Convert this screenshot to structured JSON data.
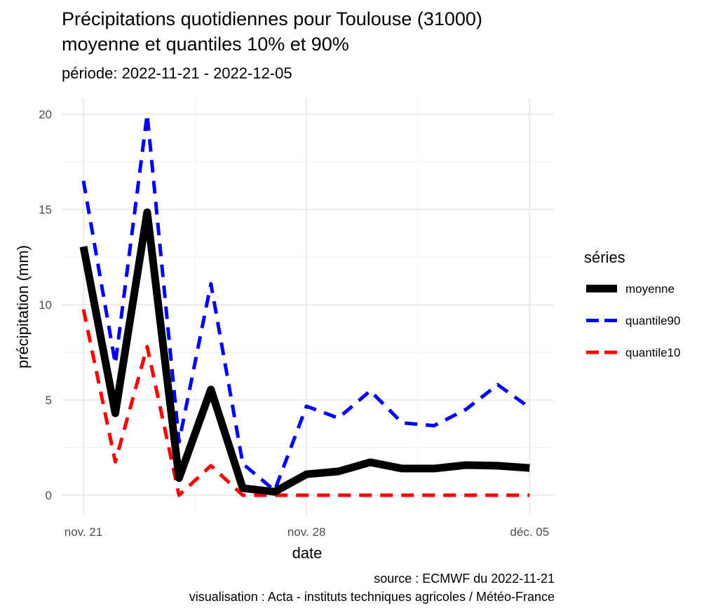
{
  "chart_data": {
    "type": "line",
    "title": "Précipitations quotidiennes pour Toulouse (31000)",
    "title_line2": "moyenne et quantiles 10% et 90%",
    "subtitle": "période: 2022-11-21 - 2022-12-05",
    "xlabel": "date",
    "ylabel": "précipitation (mm)",
    "x": [
      "2022-11-21",
      "2022-11-22",
      "2022-11-23",
      "2022-11-24",
      "2022-11-25",
      "2022-11-26",
      "2022-11-27",
      "2022-11-28",
      "2022-11-29",
      "2022-11-30",
      "2022-12-01",
      "2022-12-02",
      "2022-12-03",
      "2022-12-04",
      "2022-12-05"
    ],
    "x_ticks": [
      {
        "index": 0,
        "label": "nov. 21"
      },
      {
        "index": 7,
        "label": "nov. 28"
      },
      {
        "index": 14,
        "label": "déc. 05"
      }
    ],
    "y_ticks": [
      0,
      5,
      10,
      15,
      20
    ],
    "ylim": [
      -1,
      21
    ],
    "grid": true,
    "legend": {
      "title": "séries",
      "placement": "right"
    },
    "series": [
      {
        "name": "moyenne",
        "color": "#000000",
        "dash": "solid",
        "values": [
          13.05,
          4.3,
          14.85,
          0.9,
          5.55,
          0.37,
          0.18,
          1.1,
          1.25,
          1.73,
          1.4,
          1.4,
          1.58,
          1.55,
          1.43
        ]
      },
      {
        "name": "quantile90",
        "color": "#0000ff",
        "dash": "dashed",
        "values": [
          16.5,
          6.9,
          20.0,
          2.8,
          11.1,
          1.65,
          0.25,
          4.67,
          4.05,
          5.48,
          3.8,
          3.65,
          4.5,
          5.8,
          4.6
        ]
      },
      {
        "name": "quantile10",
        "color": "#ff0000",
        "dash": "dashed",
        "values": [
          9.75,
          1.75,
          7.8,
          0,
          1.55,
          0,
          0,
          0,
          0,
          0,
          0,
          0,
          0,
          0,
          0
        ]
      }
    ],
    "caption_line1": "source : ECMWF du 2022-11-21",
    "caption_line2": "visualisation : Acta - instituts techniques agricoles / Météo-France"
  }
}
